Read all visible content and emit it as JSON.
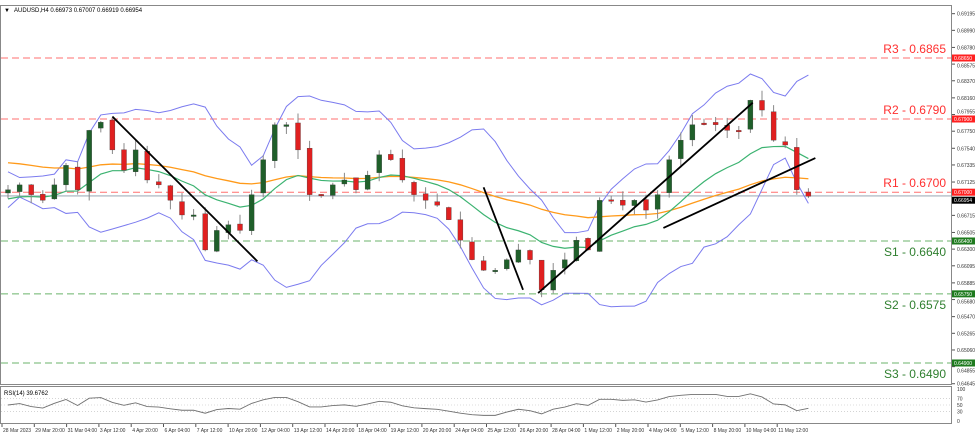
{
  "header": {
    "title": "AUDUSD,H4 0.66973 0.67007 0.66919 0.66954"
  },
  "colors": {
    "bull": "#1f5f2a",
    "bear": "#e02020",
    "resistance": "#ff4040",
    "support": "#3a9a3a",
    "bands": "#7b7bef",
    "ma_green": "#3cb371",
    "ma_orange": "#ff9a1a",
    "trendline": "#000000",
    "rsi": "#707070"
  },
  "chart_data": {
    "type": "candlestick",
    "symbol": "AUDUSD",
    "timeframe": "H4",
    "ylim": [
      0.6455,
      0.693
    ],
    "y_ticks": [
      "0.69195",
      "0.68990",
      "0.68780",
      "0.68575",
      "0.68370",
      "0.68160",
      "0.67955",
      "0.67750",
      "0.67540",
      "0.67335",
      "0.67125",
      "0.66715",
      "0.66505",
      "0.66300",
      "0.66095",
      "0.65885",
      "0.65680",
      "0.65470",
      "0.65265",
      "0.65060",
      "0.64855",
      "0.64645"
    ],
    "x_ticks": [
      "28 Mar 2023",
      "29 Mar 20:00",
      "31 Mar 04:00",
      "3 Apr 12:00",
      "4 Apr 20:00",
      "6 Apr 04:00",
      "7 Apr 12:00",
      "10 Apr 20:00",
      "12 Apr 04:00",
      "13 Apr 12:00",
      "14 Apr 20:00",
      "18 Apr 04:00",
      "19 Apr 12:00",
      "20 Apr 20:00",
      "24 Apr 04:00",
      "25 Apr 12:00",
      "26 Apr 20:00",
      "28 Apr 04:00",
      "1 May 12:00",
      "2 May 20:00",
      "4 May 04:00",
      "5 May 12:00",
      "8 May 20:00",
      "10 May 04:00",
      "11 May 12:00"
    ],
    "closes": [
      0.6703,
      0.6709,
      0.6697,
      0.669,
      0.6709,
      0.6733,
      0.6703,
      0.6776,
      0.6786,
      0.6752,
      0.6727,
      0.6752,
      0.6715,
      0.6709,
      0.669,
      0.6672,
      0.6672,
      0.6629,
      0.6653,
      0.666,
      0.6653,
      0.6697,
      0.674,
      0.6783,
      0.6783,
      0.6752,
      0.6697,
      0.6697,
      0.6709,
      0.6715,
      0.6703,
      0.6721,
      0.6746,
      0.674,
      0.6715,
      0.6697,
      0.669,
      0.6684,
      0.6666,
      0.6641,
      0.6617,
      0.6604,
      0.6604,
      0.6617,
      0.6629,
      0.6617,
      0.658,
      0.6604,
      0.6617,
      0.6641,
      0.6629,
      0.669,
      0.669,
      0.6684,
      0.669,
      0.6678,
      0.6697,
      0.674,
      0.6764,
      0.6783,
      0.6783,
      0.6783,
      0.6776,
      0.6776,
      0.6813,
      0.6801,
      0.6764,
      0.6758,
      0.6703,
      0.6695
    ],
    "levels": [
      {
        "label": "R3 - 0.6865",
        "price": 0.6865,
        "tag": "0.68650",
        "kind": "resistance"
      },
      {
        "label": "R2 - 0.6790",
        "price": 0.679,
        "tag": "0.67900",
        "kind": "resistance"
      },
      {
        "label": "R1 - 0.6700",
        "price": 0.67,
        "tag": "0.67000",
        "kind": "resistance"
      },
      {
        "label": "S1 - 0.6640",
        "price": 0.664,
        "tag": "0.66400",
        "kind": "support"
      },
      {
        "label": "S2 - 0.6575",
        "price": 0.6575,
        "tag": "0.65750",
        "kind": "support"
      },
      {
        "label": "S3 - 0.6490",
        "price": 0.649,
        "tag": "0.64900",
        "kind": "support"
      }
    ],
    "current_price": {
      "price": 0.66954,
      "tag": "0.66954"
    },
    "trendlines": [
      {
        "from": [
          9,
          0.6793
        ],
        "to": [
          21.5,
          0.6615
        ]
      },
      {
        "from": [
          41,
          0.6706
        ],
        "to": [
          44.4,
          0.658
        ]
      },
      {
        "from": [
          45.7,
          0.6576
        ],
        "to": [
          64.2,
          0.681
        ]
      },
      {
        "from": [
          56.5,
          0.6656
        ],
        "to": [
          69.6,
          0.6742
        ]
      }
    ],
    "indicators": [
      "Bollinger Bands",
      "Moving Average",
      "Moving Average"
    ],
    "rsi": {
      "label": "RSI(14) 39.6762",
      "period": 14,
      "value": 39.6762,
      "ticks": [
        "100",
        "70",
        "50",
        "30",
        "0"
      ],
      "ylim": [
        0,
        100
      ]
    }
  }
}
